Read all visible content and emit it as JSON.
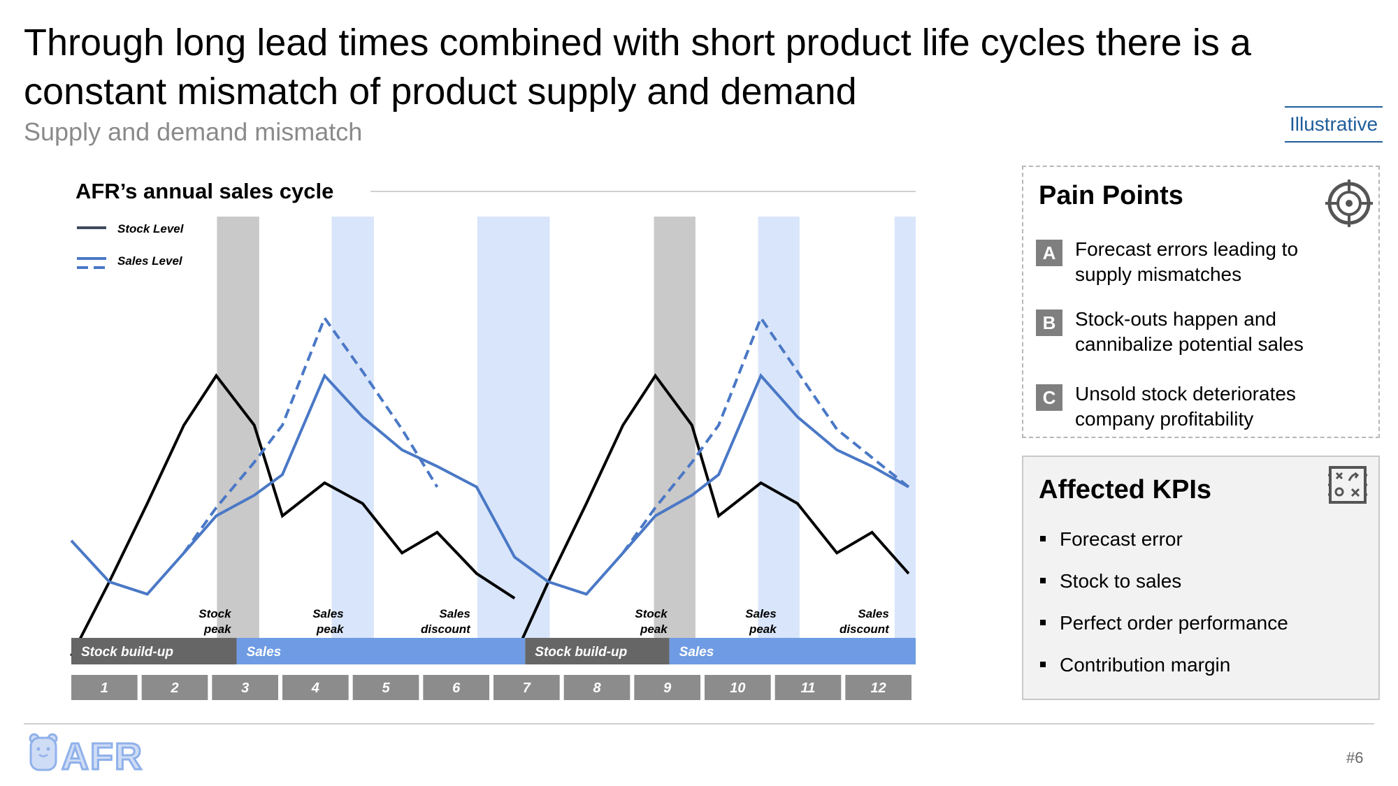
{
  "header": {
    "title": "Through long lead times combined with short product life cycles there is a constant mismatch of product supply and demand",
    "subtitle": "Supply and demand mismatch",
    "tag": "Illustrative"
  },
  "chart_data": {
    "type": "line",
    "title": "AFR’s annual sales cycle",
    "legend": [
      {
        "name": "Stock Level",
        "style": "solid",
        "color": "#3e4a5c"
      },
      {
        "name": "Sales Level",
        "style": "dashed",
        "color": "#4a78c6"
      }
    ],
    "legend_position": "top-left",
    "x_label": "",
    "y_label": "",
    "x_ticks": [
      "1",
      "2",
      "3",
      "4",
      "5",
      "6",
      "7",
      "8",
      "9",
      "10",
      "11",
      "12"
    ],
    "x_range": [
      0.5,
      12.5
    ],
    "y_range": [
      0,
      100
    ],
    "grid": false,
    "series": [
      {
        "name": "Stock Level",
        "color": "#000000",
        "style": "solid",
        "points": [
          [
            0.5,
            0
          ],
          [
            1.04,
            18
          ],
          [
            1.58,
            37
          ],
          [
            2.1,
            56
          ],
          [
            2.56,
            68
          ],
          [
            3.1,
            56
          ],
          [
            3.5,
            34
          ],
          [
            4.1,
            42
          ],
          [
            4.64,
            37
          ],
          [
            5.2,
            25
          ],
          [
            5.7,
            30
          ],
          [
            6.26,
            20
          ],
          [
            6.8,
            14
          ],
          [
            6.8,
            0
          ],
          [
            7.28,
            18
          ],
          [
            7.82,
            37
          ],
          [
            8.34,
            56
          ],
          [
            8.8,
            68
          ],
          [
            9.32,
            56
          ],
          [
            9.7,
            34
          ],
          [
            10.3,
            42
          ],
          [
            10.82,
            37
          ],
          [
            11.38,
            25
          ],
          [
            11.88,
            30
          ],
          [
            12.4,
            20
          ]
        ]
      },
      {
        "name": "Sales Level (actual)",
        "color": "#4a78c6",
        "style": "solid",
        "points": [
          [
            0.5,
            28
          ],
          [
            1.04,
            18
          ],
          [
            1.58,
            15
          ],
          [
            2.1,
            25
          ],
          [
            2.56,
            34
          ],
          [
            3.1,
            39
          ],
          [
            3.5,
            44
          ],
          [
            4.1,
            68
          ],
          [
            4.64,
            58
          ],
          [
            5.2,
            50
          ],
          [
            5.7,
            46
          ],
          [
            6.26,
            41
          ],
          [
            6.8,
            24
          ],
          [
            7.28,
            18
          ],
          [
            7.82,
            15
          ],
          [
            8.34,
            25
          ],
          [
            8.8,
            34
          ],
          [
            9.32,
            39
          ],
          [
            9.7,
            44
          ],
          [
            10.3,
            68
          ],
          [
            10.82,
            58
          ],
          [
            11.38,
            50
          ],
          [
            11.88,
            46
          ],
          [
            12.4,
            41
          ]
        ]
      },
      {
        "name": "Sales Level (planned)",
        "color": "#4a78c6",
        "style": "dashed",
        "points": [
          [
            2.1,
            25
          ],
          [
            2.56,
            36
          ],
          [
            3.1,
            47
          ],
          [
            3.5,
            56
          ],
          [
            4.1,
            82
          ],
          [
            4.64,
            69
          ],
          [
            5.2,
            55
          ],
          [
            5.7,
            41
          ],
          [
            8.34,
            25
          ],
          [
            8.8,
            36
          ],
          [
            9.32,
            47
          ],
          [
            9.7,
            56
          ],
          [
            10.3,
            82
          ],
          [
            10.82,
            69
          ],
          [
            11.38,
            55
          ],
          [
            12.4,
            41
          ]
        ]
      }
    ],
    "shaded_bands": [],
    "annotations": [
      {
        "text": [
          "Stock",
          "peak"
        ],
        "x": 2.85
      },
      {
        "text": [
          "Sales",
          "peak"
        ],
        "x": 4.45
      },
      {
        "text": [
          "Sales",
          "discount"
        ],
        "x": 6.25
      },
      {
        "text": [
          "Stock",
          "peak"
        ],
        "x": 9.05
      },
      {
        "text": [
          "Sales",
          "peak"
        ],
        "x": 10.6
      },
      {
        "text": [
          "Sales",
          "discount"
        ],
        "x": 12.2
      }
    ],
    "phases": [
      {
        "label": "Stock build-up",
        "from": 0.5,
        "to": 2.85,
        "color": "#666666"
      },
      {
        "label": "Sales",
        "from": 2.85,
        "to": 6.95,
        "color": "#6e9be3"
      },
      {
        "label": "Stock build-up",
        "from": 6.95,
        "to": 9.0,
        "color": "#666666"
      },
      {
        "label": "Sales",
        "from": 9.0,
        "to": 12.5,
        "color": "#6e9be3"
      }
    ]
  },
  "pain_points": {
    "title": "Pain Points",
    "icon": "target-icon",
    "items": [
      {
        "badge": "A",
        "line1": "Forecast errors leading to",
        "line2": "supply mismatches"
      },
      {
        "badge": "B",
        "line1": "Stock-outs happen and",
        "line2": "cannibalize potential sales"
      },
      {
        "badge": "C",
        "line1": "Unsold stock deteriorates",
        "line2": "company profitability"
      }
    ]
  },
  "kpis": {
    "title": "Affected KPIs",
    "icon": "strategy-board-icon",
    "items": [
      "Forecast error",
      "Stock to sales",
      "Perfect order performance",
      "Contribution margin"
    ]
  },
  "footer": {
    "logo": "AFR",
    "page": "#6"
  }
}
